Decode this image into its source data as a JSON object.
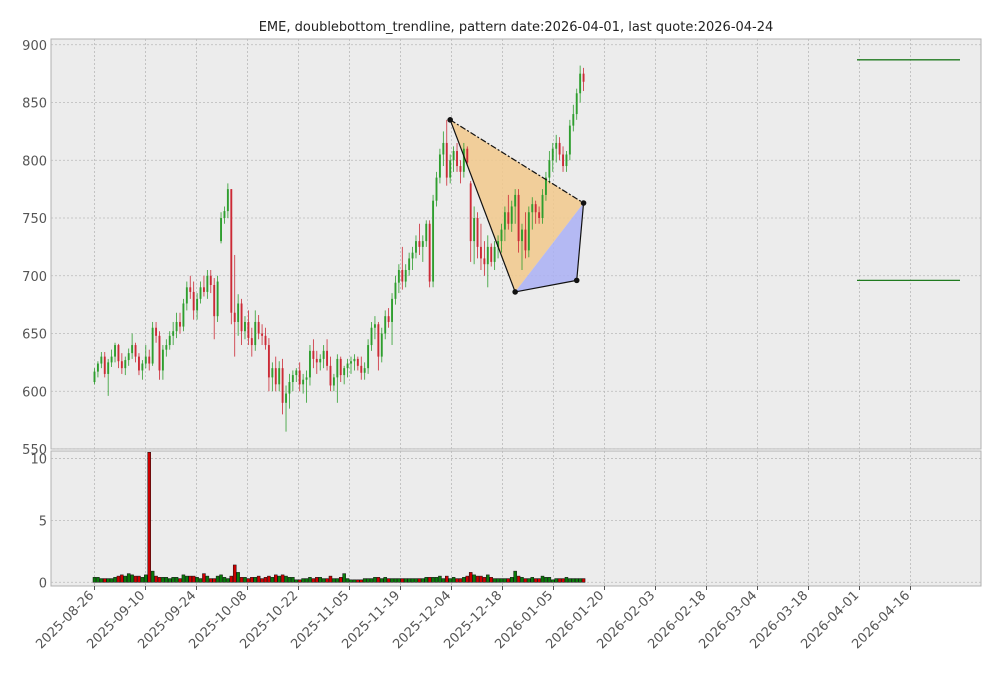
{
  "chart_data": {
    "type": "candlestick",
    "title": "EME, doublebottom_trendline, pattern date:2026-04-01, last quote:2026-04-24",
    "price_panel": {
      "ylim": [
        550,
        905
      ],
      "yticks": [
        550,
        600,
        650,
        700,
        750,
        800,
        850,
        900
      ],
      "grid": true
    },
    "volume_panel": {
      "ylim": [
        -0.3,
        10.6
      ],
      "yticks": [
        0,
        5,
        10
      ],
      "grid": true
    },
    "x_tick_labels": [
      "2025-08-26",
      "2025-09-10",
      "2025-09-24",
      "2025-10-08",
      "2025-10-22",
      "2025-11-05",
      "2025-11-19",
      "2025-12-04",
      "2025-12-18",
      "2026-01-05",
      "2026-01-20",
      "2026-02-03",
      "2026-02-18",
      "2026-03-04",
      "2026-03-18",
      "2026-04-01",
      "2026-04-16"
    ],
    "colors": {
      "up": "#2e9e2e",
      "down": "#cc2a36",
      "volume_up": "#0a7a0a",
      "volume_down": "#cc0000",
      "triangle1": "#f2c98c",
      "triangle2": "#aab0f5",
      "levels": "#1f7a1f",
      "background": "#ececec"
    },
    "ohlcv": [
      [
        608,
        620,
        606,
        617,
        0.4
      ],
      [
        617,
        626,
        612,
        624,
        0.4
      ],
      [
        624,
        634,
        620,
        630,
        0.3
      ],
      [
        630,
        634,
        612,
        615,
        0.3
      ],
      [
        615,
        628,
        596,
        625,
        0.3
      ],
      [
        625,
        636,
        621,
        630,
        0.3
      ],
      [
        630,
        642,
        625,
        640,
        0.4
      ],
      [
        640,
        641,
        620,
        626,
        0.5
      ],
      [
        626,
        633,
        615,
        620,
        0.6
      ],
      [
        620,
        630,
        614,
        627,
        0.5
      ],
      [
        627,
        637,
        622,
        633,
        0.7
      ],
      [
        633,
        650,
        628,
        640,
        0.6
      ],
      [
        640,
        642,
        625,
        630,
        0.5
      ],
      [
        630,
        633,
        614,
        618,
        0.5
      ],
      [
        618,
        627,
        610,
        624,
        0.4
      ],
      [
        624,
        640,
        620,
        630,
        0.6
      ],
      [
        630,
        636,
        618,
        624,
        10.5
      ],
      [
        624,
        660,
        622,
        655,
        0.9
      ],
      [
        655,
        660,
        642,
        648,
        0.5
      ],
      [
        648,
        652,
        610,
        618,
        0.4
      ],
      [
        618,
        640,
        610,
        636,
        0.4
      ],
      [
        636,
        645,
        630,
        640,
        0.4
      ],
      [
        640,
        652,
        636,
        648,
        0.3
      ],
      [
        648,
        660,
        640,
        652,
        0.4
      ],
      [
        652,
        668,
        646,
        660,
        0.4
      ],
      [
        660,
        668,
        650,
        656,
        0.3
      ],
      [
        656,
        680,
        652,
        676,
        0.6
      ],
      [
        676,
        695,
        670,
        690,
        0.5
      ],
      [
        690,
        700,
        680,
        686,
        0.5
      ],
      [
        686,
        695,
        662,
        670,
        0.5
      ],
      [
        670,
        685,
        662,
        680,
        0.4
      ],
      [
        680,
        695,
        676,
        690,
        0.3
      ],
      [
        690,
        700,
        682,
        686,
        0.7
      ],
      [
        686,
        705,
        680,
        700,
        0.5
      ],
      [
        700,
        705,
        685,
        692,
        0.3
      ],
      [
        692,
        698,
        645,
        665,
        0.3
      ],
      [
        665,
        700,
        660,
        695,
        0.5
      ],
      [
        730,
        755,
        728,
        750,
        0.6
      ],
      [
        750,
        760,
        745,
        756,
        0.4
      ],
      [
        756,
        780,
        750,
        775,
        0.3
      ],
      [
        775,
        775,
        658,
        668,
        0.5
      ],
      [
        668,
        718,
        630,
        660,
        1.4
      ],
      [
        660,
        684,
        648,
        676,
        0.8
      ],
      [
        676,
        680,
        640,
        652,
        0.4
      ],
      [
        652,
        665,
        645,
        660,
        0.4
      ],
      [
        660,
        670,
        640,
        646,
        0.3
      ],
      [
        646,
        655,
        630,
        640,
        0.4
      ],
      [
        640,
        670,
        635,
        660,
        0.4
      ],
      [
        660,
        666,
        645,
        650,
        0.5
      ],
      [
        650,
        658,
        640,
        648,
        0.3
      ],
      [
        648,
        655,
        636,
        640,
        0.4
      ],
      [
        640,
        646,
        600,
        612,
        0.5
      ],
      [
        612,
        625,
        600,
        620,
        0.4
      ],
      [
        620,
        630,
        600,
        606,
        0.6
      ],
      [
        606,
        626,
        600,
        620,
        0.5
      ],
      [
        620,
        628,
        580,
        590,
        0.6
      ],
      [
        590,
        605,
        565,
        598,
        0.5
      ],
      [
        598,
        615,
        585,
        608,
        0.4
      ],
      [
        608,
        618,
        600,
        614,
        0.4
      ],
      [
        614,
        620,
        608,
        618,
        0.2
      ],
      [
        618,
        625,
        600,
        606,
        0.2
      ],
      [
        606,
        615,
        598,
        610,
        0.3
      ],
      [
        610,
        618,
        590,
        612,
        0.3
      ],
      [
        612,
        640,
        605,
        635,
        0.4
      ],
      [
        635,
        645,
        620,
        628,
        0.3
      ],
      [
        628,
        635,
        615,
        625,
        0.4
      ],
      [
        625,
        632,
        618,
        628,
        0.4
      ],
      [
        628,
        640,
        620,
        635,
        0.3
      ],
      [
        635,
        645,
        618,
        622,
        0.3
      ],
      [
        622,
        630,
        600,
        605,
        0.5
      ],
      [
        605,
        615,
        600,
        612,
        0.3
      ],
      [
        612,
        632,
        590,
        628,
        0.3
      ],
      [
        628,
        630,
        608,
        614,
        0.4
      ],
      [
        614,
        622,
        606,
        620,
        0.7
      ],
      [
        620,
        628,
        612,
        624,
        0.3
      ],
      [
        624,
        630,
        615,
        626,
        0.2
      ],
      [
        626,
        632,
        618,
        628,
        0.2
      ],
      [
        628,
        630,
        618,
        622,
        0.2
      ],
      [
        622,
        630,
        610,
        616,
        0.2
      ],
      [
        616,
        625,
        610,
        620,
        0.3
      ],
      [
        620,
        645,
        615,
        640,
        0.3
      ],
      [
        640,
        660,
        635,
        655,
        0.3
      ],
      [
        655,
        665,
        645,
        658,
        0.4
      ],
      [
        658,
        660,
        618,
        630,
        0.4
      ],
      [
        630,
        655,
        625,
        650,
        0.3
      ],
      [
        650,
        670,
        645,
        665,
        0.4
      ],
      [
        665,
        672,
        655,
        660,
        0.3
      ],
      [
        660,
        685,
        640,
        680,
        0.3
      ],
      [
        680,
        700,
        675,
        694,
        0.3
      ],
      [
        694,
        710,
        685,
        705,
        0.3
      ],
      [
        705,
        725,
        688,
        695,
        0.3
      ],
      [
        695,
        710,
        690,
        705,
        0.3
      ],
      [
        705,
        720,
        700,
        715,
        0.3
      ],
      [
        715,
        725,
        705,
        720,
        0.3
      ],
      [
        720,
        735,
        715,
        730,
        0.3
      ],
      [
        730,
        745,
        718,
        725,
        0.3
      ],
      [
        725,
        735,
        712,
        730,
        0.3
      ],
      [
        730,
        748,
        725,
        745,
        0.4
      ],
      [
        745,
        748,
        690,
        695,
        0.4
      ],
      [
        695,
        770,
        690,
        765,
        0.4
      ],
      [
        765,
        790,
        760,
        785,
        0.4
      ],
      [
        785,
        810,
        780,
        805,
        0.5
      ],
      [
        805,
        825,
        795,
        815,
        0.3
      ],
      [
        815,
        835,
        778,
        785,
        0.5
      ],
      [
        785,
        805,
        780,
        800,
        0.3
      ],
      [
        800,
        812,
        790,
        808,
        0.4
      ],
      [
        808,
        815,
        790,
        795,
        0.3
      ],
      [
        795,
        800,
        780,
        790,
        0.3
      ],
      [
        790,
        815,
        785,
        810,
        0.4
      ],
      [
        810,
        812,
        795,
        798,
        0.5
      ],
      [
        780,
        782,
        712,
        730,
        0.8
      ],
      [
        730,
        760,
        710,
        750,
        0.6
      ],
      [
        750,
        755,
        715,
        725,
        0.5
      ],
      [
        725,
        745,
        705,
        715,
        0.5
      ],
      [
        715,
        730,
        700,
        710,
        0.4
      ],
      [
        710,
        735,
        690,
        725,
        0.6
      ],
      [
        725,
        728,
        708,
        712,
        0.4
      ],
      [
        712,
        730,
        705,
        725,
        0.3
      ],
      [
        725,
        735,
        715,
        730,
        0.3
      ],
      [
        730,
        745,
        720,
        740,
        0.3
      ],
      [
        740,
        760,
        730,
        755,
        0.3
      ],
      [
        755,
        770,
        740,
        745,
        0.3
      ],
      [
        745,
        765,
        738,
        760,
        0.4
      ],
      [
        760,
        775,
        745,
        770,
        0.9
      ],
      [
        770,
        775,
        720,
        730,
        0.5
      ],
      [
        730,
        745,
        705,
        740,
        0.4
      ],
      [
        740,
        755,
        715,
        722,
        0.3
      ],
      [
        722,
        760,
        716,
        755,
        0.3
      ],
      [
        755,
        768,
        740,
        762,
        0.4
      ],
      [
        762,
        765,
        745,
        755,
        0.3
      ],
      [
        755,
        760,
        745,
        750,
        0.3
      ],
      [
        750,
        775,
        745,
        770,
        0.5
      ],
      [
        770,
        790,
        765,
        785,
        0.4
      ],
      [
        785,
        808,
        780,
        800,
        0.4
      ],
      [
        800,
        815,
        790,
        810,
        0.2
      ],
      [
        810,
        822,
        798,
        815,
        0.3
      ],
      [
        815,
        820,
        800,
        805,
        0.3
      ],
      [
        805,
        812,
        790,
        795,
        0.3
      ],
      [
        795,
        808,
        790,
        805,
        0.4
      ],
      [
        805,
        835,
        800,
        830,
        0.3
      ],
      [
        830,
        848,
        825,
        840,
        0.3
      ],
      [
        840,
        862,
        835,
        858,
        0.3
      ],
      [
        858,
        882,
        850,
        875,
        0.3
      ],
      [
        875,
        880,
        860,
        868,
        0.3
      ]
    ],
    "annotations": {
      "points": [
        {
          "date_index": 104,
          "price": 835
        },
        {
          "date_index": 123,
          "price": 686
        },
        {
          "date_index": 141,
          "price": 696
        },
        {
          "date_index": 143,
          "price": 763
        }
      ],
      "resistance_level": 887,
      "support_level": 696
    }
  }
}
